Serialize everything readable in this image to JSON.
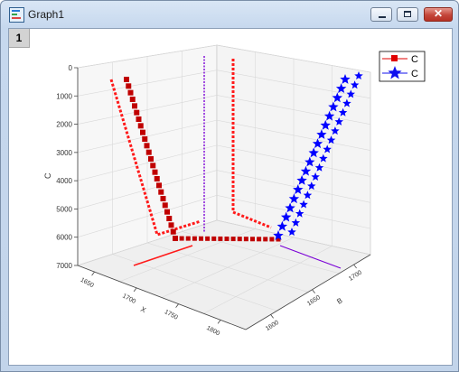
{
  "window": {
    "title": "Graph1",
    "layer_label": "1"
  },
  "title_buttons": {
    "close_label": "✕"
  },
  "chart_data": {
    "type": "scatter",
    "title": "",
    "y_label": "C",
    "z_ticks": [
      "0",
      "1000",
      "2000",
      "3000",
      "4000",
      "5000",
      "6000",
      "7000"
    ],
    "x_axis_label": "X",
    "x_ticks": [
      "1650",
      "1700",
      "1750",
      "1800"
    ],
    "y_axis_label": "B",
    "y_ticks": [
      "1600",
      "1650",
      "1700"
    ],
    "legend": [
      {
        "label": "C",
        "symbol": "square-line",
        "color": "#e00000"
      },
      {
        "label": "C",
        "symbol": "star-line",
        "color": "#1010ee"
      }
    ],
    "grid": true,
    "colors": {
      "red": "#ff1a1a",
      "dark_red": "#c00000",
      "blue": "#0000ff",
      "purple": "#7a00d6"
    }
  }
}
